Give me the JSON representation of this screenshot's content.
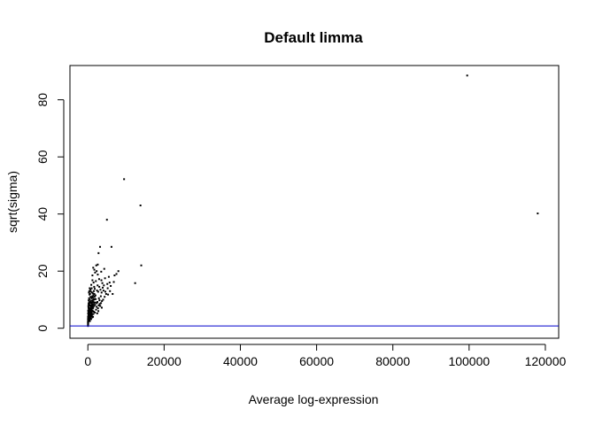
{
  "chart_data": {
    "type": "scatter",
    "title": "Default limma",
    "xlabel": "Average log-expression",
    "ylabel": "sqrt(sigma)",
    "xlim": [
      -4700,
      123500
    ],
    "ylim": [
      -3.5,
      92
    ],
    "x_ticks": [
      0,
      20000,
      40000,
      60000,
      80000,
      100000,
      120000
    ],
    "x_tick_labels": [
      "0",
      "20000",
      "40000",
      "60000",
      "80000",
      "100000",
      "120000"
    ],
    "y_ticks": [
      0,
      20,
      40,
      60,
      80
    ],
    "y_tick_labels": [
      "0",
      "20",
      "40",
      "60",
      "80"
    ],
    "hline": {
      "y": 0.8,
      "color": "#0000cc"
    },
    "grid": false,
    "legend": "none",
    "point_color": "#000000",
    "points": [
      [
        99500,
        88.5
      ],
      [
        118000,
        40.2
      ],
      [
        9500,
        52.2
      ],
      [
        13800,
        43.0
      ],
      [
        5000,
        38.0
      ],
      [
        14000,
        22.0
      ],
      [
        12400,
        15.8
      ],
      [
        6200,
        28.5
      ],
      [
        3200,
        28.5
      ],
      [
        2800,
        26.3
      ],
      [
        2600,
        22.3
      ],
      [
        2200,
        22.0
      ],
      [
        8000,
        20.0
      ],
      [
        7500,
        19.0
      ],
      [
        5500,
        18.0
      ],
      [
        4500,
        17.5
      ],
      [
        6800,
        16.2
      ],
      [
        3800,
        15.8
      ],
      [
        4200,
        15.0
      ],
      [
        3000,
        14.5
      ],
      [
        5200,
        14.0
      ],
      [
        2400,
        13.2
      ],
      [
        3600,
        12.5
      ],
      [
        1800,
        13.8
      ],
      [
        4800,
        12.0
      ],
      [
        2000,
        11.5
      ],
      [
        3400,
        11.2
      ],
      [
        2900,
        10.5
      ],
      [
        4000,
        10.0
      ],
      [
        1600,
        10.2
      ],
      [
        5800,
        13.0
      ],
      [
        6500,
        12.0
      ],
      [
        1200,
        18.5
      ],
      [
        1500,
        16.0
      ],
      [
        900,
        15.2
      ],
      [
        2500,
        9.2
      ],
      [
        3100,
        8.5
      ],
      [
        1900,
        8.2
      ],
      [
        2300,
        7.5
      ],
      [
        1400,
        7.2
      ],
      [
        3700,
        9.5
      ],
      [
        4400,
        11.0
      ],
      [
        1100,
        12.5
      ],
      [
        700,
        11.0
      ],
      [
        1300,
        9.5
      ],
      [
        1700,
        12.0
      ],
      [
        2700,
        12.8
      ],
      [
        3300,
        13.5
      ],
      [
        3900,
        14.2
      ],
      [
        5100,
        15.5
      ],
      [
        600,
        9.0
      ],
      [
        500,
        8.0
      ],
      [
        800,
        7.5
      ],
      [
        1000,
        6.8
      ],
      [
        1250,
        6.2
      ],
      [
        1550,
        5.8
      ],
      [
        1850,
        5.5
      ],
      [
        2150,
        6.5
      ],
      [
        2450,
        5.2
      ],
      [
        2750,
        6.0
      ],
      [
        400,
        6.5
      ],
      [
        350,
        5.5
      ],
      [
        300,
        7.0
      ],
      [
        250,
        4.5
      ],
      [
        200,
        5.0
      ],
      [
        150,
        3.8
      ],
      [
        100,
        3.0
      ],
      [
        80,
        2.5
      ],
      [
        60,
        2.0
      ],
      [
        40,
        1.5
      ],
      [
        450,
        4.0
      ],
      [
        550,
        4.8
      ],
      [
        650,
        3.5
      ],
      [
        750,
        4.2
      ],
      [
        850,
        3.2
      ],
      [
        950,
        5.5
      ],
      [
        1050,
        4.5
      ],
      [
        1150,
        3.8
      ],
      [
        1350,
        4.0
      ],
      [
        1450,
        5.0
      ],
      [
        180,
        8.5
      ],
      [
        220,
        9.8
      ],
      [
        320,
        10.5
      ],
      [
        420,
        11.8
      ],
      [
        520,
        10.0
      ],
      [
        280,
        12.5
      ],
      [
        380,
        13.0
      ],
      [
        480,
        14.0
      ],
      [
        580,
        12.0
      ],
      [
        680,
        13.5
      ],
      [
        120,
        6.0
      ],
      [
        160,
        7.2
      ],
      [
        260,
        8.8
      ],
      [
        360,
        9.2
      ],
      [
        460,
        8.2
      ],
      [
        30,
        1.0
      ],
      [
        50,
        1.8
      ],
      [
        70,
        2.8
      ],
      [
        90,
        3.5
      ],
      [
        110,
        4.2
      ],
      [
        1650,
        7.8
      ],
      [
        1950,
        9.0
      ],
      [
        2050,
        10.2
      ],
      [
        2350,
        8.8
      ],
      [
        2650,
        7.0
      ],
      [
        2850,
        8.0
      ],
      [
        3050,
        9.8
      ],
      [
        3250,
        7.8
      ],
      [
        3450,
        8.8
      ],
      [
        3650,
        7.2
      ],
      [
        20,
        2.2
      ],
      [
        35,
        3.2
      ],
      [
        55,
        4.0
      ],
      [
        75,
        5.2
      ],
      [
        95,
        6.2
      ],
      [
        130,
        7.8
      ],
      [
        170,
        5.8
      ],
      [
        210,
        6.8
      ],
      [
        240,
        3.5
      ],
      [
        310,
        4.5
      ],
      [
        340,
        8.0
      ],
      [
        390,
        6.0
      ],
      [
        430,
        5.2
      ],
      [
        470,
        7.0
      ],
      [
        510,
        6.0
      ],
      [
        560,
        5.5
      ],
      [
        610,
        6.8
      ],
      [
        660,
        7.8
      ],
      [
        710,
        6.2
      ],
      [
        760,
        8.8
      ],
      [
        810,
        9.5
      ],
      [
        860,
        10.8
      ],
      [
        910,
        8.0
      ],
      [
        960,
        7.0
      ],
      [
        1010,
        9.0
      ],
      [
        1060,
        10.5
      ],
      [
        1110,
        8.5
      ],
      [
        1160,
        11.2
      ],
      [
        1210,
        9.8
      ],
      [
        1260,
        8.0
      ],
      [
        1310,
        10.8
      ],
      [
        1360,
        12.2
      ],
      [
        1410,
        9.2
      ],
      [
        1460,
        11.5
      ],
      [
        1510,
        8.5
      ],
      [
        1560,
        13.0
      ],
      [
        1610,
        10.0
      ],
      [
        1660,
        14.5
      ],
      [
        1710,
        9.0
      ],
      [
        1760,
        11.0
      ],
      [
        45,
        0.8
      ],
      [
        65,
        1.2
      ],
      [
        85,
        1.8
      ],
      [
        105,
        2.5
      ],
      [
        125,
        3.0
      ],
      [
        145,
        4.8
      ],
      [
        190,
        3.0
      ],
      [
        230,
        2.5
      ],
      [
        270,
        3.8
      ],
      [
        330,
        2.8
      ],
      [
        370,
        3.5
      ],
      [
        410,
        2.8
      ],
      [
        440,
        4.5
      ],
      [
        490,
        3.2
      ],
      [
        530,
        2.5
      ],
      [
        570,
        3.8
      ],
      [
        620,
        4.5
      ],
      [
        670,
        5.8
      ],
      [
        720,
        4.8
      ],
      [
        780,
        5.2
      ],
      [
        830,
        6.0
      ],
      [
        880,
        5.0
      ],
      [
        930,
        6.5
      ],
      [
        980,
        4.2
      ],
      [
        1030,
        5.8
      ],
      [
        1080,
        7.2
      ],
      [
        1130,
        6.0
      ],
      [
        1180,
        7.8
      ],
      [
        1230,
        5.0
      ],
      [
        1280,
        7.0
      ],
      [
        2100,
        16.5
      ],
      [
        2550,
        15.0
      ],
      [
        2950,
        17.2
      ],
      [
        3550,
        16.8
      ],
      [
        4100,
        13.2
      ],
      [
        4600,
        12.8
      ],
      [
        5300,
        11.8
      ],
      [
        5700,
        16.0
      ],
      [
        6000,
        14.8
      ],
      [
        7000,
        18.5
      ],
      [
        1900,
        19.5
      ],
      [
        1700,
        20.5
      ],
      [
        1400,
        21.2
      ],
      [
        1000,
        14.0
      ],
      [
        800,
        12.8
      ],
      [
        2300,
        20.0
      ],
      [
        2600,
        18.8
      ],
      [
        3500,
        19.8
      ],
      [
        4300,
        20.8
      ],
      [
        1200,
        16.8
      ]
    ]
  }
}
